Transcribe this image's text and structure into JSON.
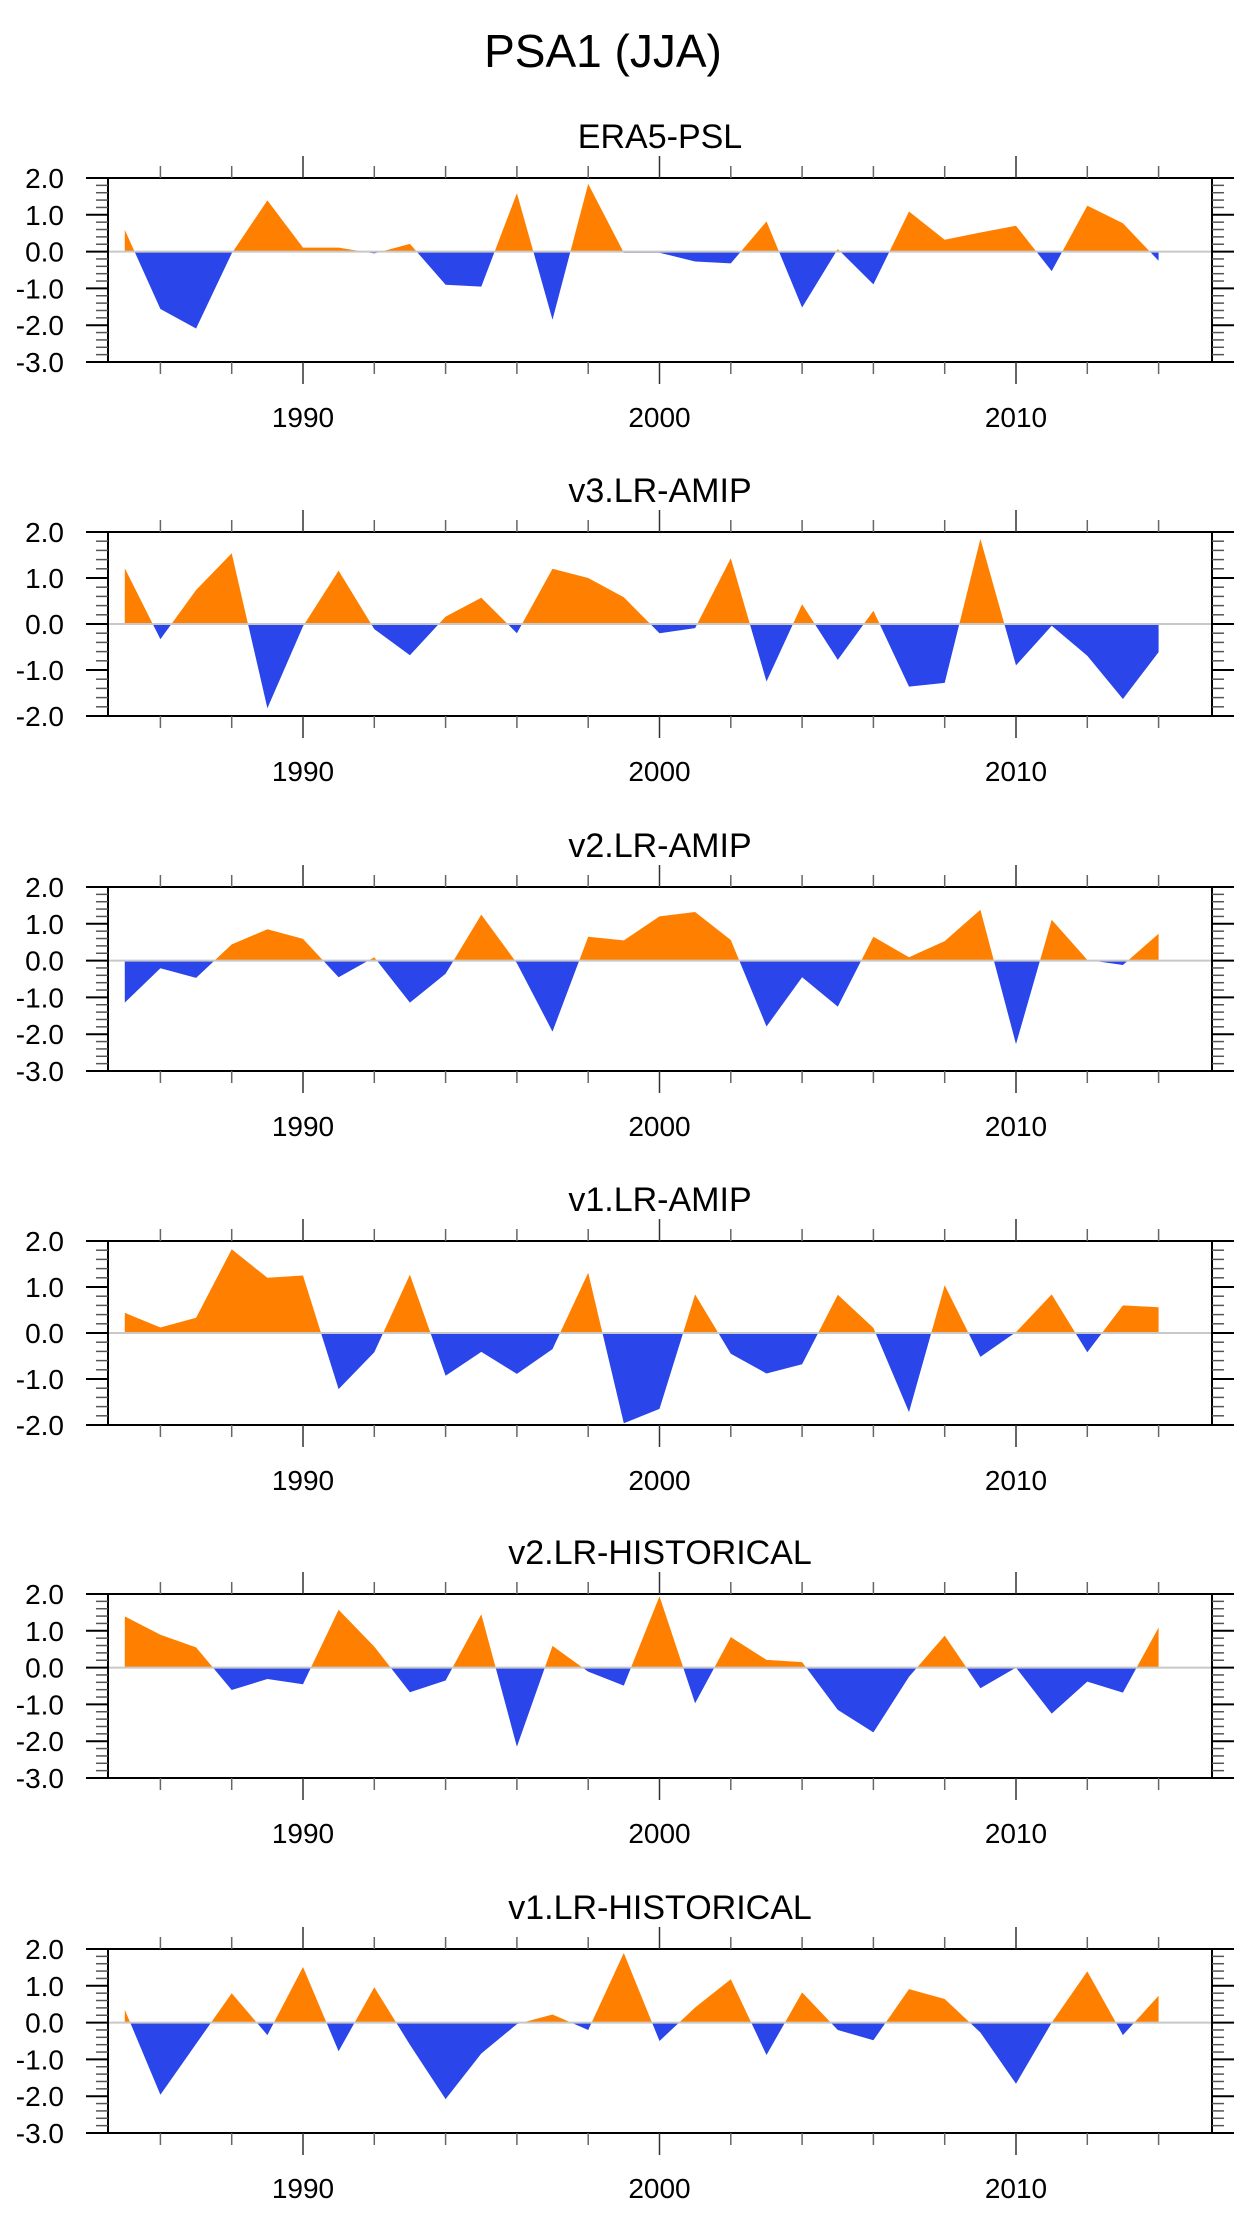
{
  "title": "PSA1 (JJA)",
  "colors": {
    "positive": "#FF8000",
    "negative": "#2A45EA",
    "zero_line": "#C8C8C8",
    "axis": "#000000"
  },
  "chart_data": [
    {
      "type": "area",
      "title": "ERA5-PSL",
      "xlabel": "",
      "ylabel": "",
      "x": [
        1985,
        1986,
        1987,
        1988,
        1989,
        1990,
        1991,
        1992,
        1993,
        1994,
        1995,
        1996,
        1997,
        1998,
        1999,
        2000,
        2001,
        2002,
        2003,
        2004,
        2005,
        2006,
        2007,
        2008,
        2009,
        2010,
        2011,
        2012,
        2013,
        2014
      ],
      "values": [
        0.59,
        -1.56,
        -2.09,
        -0.05,
        1.39,
        0.11,
        0.11,
        -0.05,
        0.21,
        -0.9,
        -0.95,
        1.59,
        -1.85,
        1.84,
        -0.03,
        -0.03,
        -0.27,
        -0.32,
        0.82,
        -1.52,
        0.07,
        -0.89,
        1.09,
        0.32,
        0.52,
        0.7,
        -0.53,
        1.25,
        0.77,
        -0.25
      ],
      "xlim": [
        1983.5,
        2015.5
      ],
      "ylim": [
        -3.0,
        2.0
      ],
      "yticks": [
        "2.0",
        "1.0",
        "0.0",
        "-1.0",
        "-2.0",
        "-3.0"
      ],
      "xticks": [
        "1990",
        "2000",
        "2010"
      ],
      "fill": "positive above zero, negative below zero"
    },
    {
      "type": "area",
      "title": "v3.LR-AMIP",
      "x": [
        1985,
        1986,
        1987,
        1988,
        1989,
        1990,
        1991,
        1992,
        1993,
        1994,
        1995,
        1996,
        1997,
        1998,
        1999,
        2000,
        2001,
        2002,
        2003,
        2004,
        2005,
        2006,
        2007,
        2008,
        2009,
        2010,
        2011,
        2012,
        2013,
        2014
      ],
      "values": [
        1.21,
        -0.33,
        0.74,
        1.54,
        -1.83,
        -0.05,
        1.16,
        -0.11,
        -0.68,
        0.16,
        0.57,
        -0.2,
        1.2,
        1.0,
        0.58,
        -0.2,
        -0.09,
        1.43,
        -1.25,
        0.43,
        -0.78,
        0.29,
        -1.36,
        -1.28,
        1.85,
        -0.9,
        -0.04,
        -0.69,
        -1.63,
        -0.61
      ],
      "xlim": [
        1983.5,
        2015.5
      ],
      "ylim": [
        -2.0,
        2.0
      ],
      "yticks": [
        "2.0",
        "1.0",
        "0.0",
        "-1.0",
        "-2.0"
      ],
      "xticks": [
        "1990",
        "2000",
        "2010"
      ]
    },
    {
      "type": "area",
      "title": "v2.LR-AMIP",
      "x": [
        1985,
        1986,
        1987,
        1988,
        1989,
        1990,
        1991,
        1992,
        1993,
        1994,
        1995,
        1996,
        1997,
        1998,
        1999,
        2000,
        2001,
        2002,
        2003,
        2004,
        2005,
        2006,
        2007,
        2008,
        2009,
        2010,
        2011,
        2012,
        2013,
        2014
      ],
      "values": [
        -1.14,
        -0.21,
        -0.47,
        0.44,
        0.85,
        0.59,
        -0.45,
        0.09,
        -1.14,
        -0.36,
        1.25,
        -0.07,
        -1.93,
        0.65,
        0.55,
        1.2,
        1.32,
        0.56,
        -1.79,
        -0.45,
        -1.25,
        0.65,
        0.09,
        0.53,
        1.38,
        -2.27,
        1.11,
        0.02,
        -0.12,
        0.73
      ],
      "xlim": [
        1983.5,
        2015.5
      ],
      "ylim": [
        -3.0,
        2.0
      ],
      "yticks": [
        "2.0",
        "1.0",
        "0.0",
        "-1.0",
        "-2.0",
        "-3.0"
      ],
      "xticks": [
        "1990",
        "2000",
        "2010"
      ]
    },
    {
      "type": "area",
      "title": "v1.LR-AMIP",
      "x": [
        1985,
        1986,
        1987,
        1988,
        1989,
        1990,
        1991,
        1992,
        1993,
        1994,
        1995,
        1996,
        1997,
        1998,
        1999,
        2000,
        2001,
        2002,
        2003,
        2004,
        2005,
        2006,
        2007,
        2008,
        2009,
        2010,
        2011,
        2012,
        2013,
        2014
      ],
      "values": [
        0.44,
        0.12,
        0.33,
        1.82,
        1.2,
        1.25,
        -1.22,
        -0.42,
        1.27,
        -0.93,
        -0.41,
        -0.89,
        -0.35,
        1.31,
        -1.96,
        -1.65,
        0.84,
        -0.45,
        -0.88,
        -0.68,
        0.83,
        0.11,
        -1.72,
        1.04,
        -0.52,
        0.02,
        0.84,
        -0.42,
        0.6,
        0.56
      ],
      "xlim": [
        1983.5,
        2015.5
      ],
      "ylim": [
        -2.0,
        2.0
      ],
      "yticks": [
        "2.0",
        "1.0",
        "0.0",
        "-1.0",
        "-2.0"
      ],
      "xticks": [
        "1990",
        "2000",
        "2010"
      ]
    },
    {
      "type": "area",
      "title": "v2.LR-HISTORICAL",
      "x": [
        1985,
        1986,
        1987,
        1988,
        1989,
        1990,
        1991,
        1992,
        1993,
        1994,
        1995,
        1996,
        1997,
        1998,
        1999,
        2000,
        2001,
        2002,
        2003,
        2004,
        2005,
        2006,
        2007,
        2008,
        2009,
        2010,
        2011,
        2012,
        2013,
        2014
      ],
      "values": [
        1.39,
        0.89,
        0.55,
        -0.61,
        -0.31,
        -0.45,
        1.57,
        0.57,
        -0.67,
        -0.35,
        1.45,
        -2.15,
        0.59,
        -0.11,
        -0.49,
        1.94,
        -0.97,
        0.83,
        0.21,
        0.15,
        -1.15,
        -1.76,
        -0.25,
        0.87,
        -0.56,
        0.0,
        -1.25,
        -0.38,
        -0.68,
        1.09
      ],
      "xlim": [
        1983.5,
        2015.5
      ],
      "ylim": [
        -3.0,
        2.0
      ],
      "yticks": [
        "2.0",
        "1.0",
        "0.0",
        "-1.0",
        "-2.0",
        "-3.0"
      ],
      "xticks": [
        "1990",
        "2000",
        "2010"
      ]
    },
    {
      "type": "area",
      "title": "v1.LR-HISTORICAL",
      "x": [
        1985,
        1986,
        1987,
        1988,
        1989,
        1990,
        1991,
        1992,
        1993,
        1994,
        1995,
        1996,
        1997,
        1998,
        1999,
        2000,
        2001,
        2002,
        2003,
        2004,
        2005,
        2006,
        2007,
        2008,
        2009,
        2010,
        2011,
        2012,
        2013,
        2014
      ],
      "values": [
        0.35,
        -1.96,
        -0.58,
        0.8,
        -0.34,
        1.51,
        -0.78,
        0.96,
        -0.6,
        -2.08,
        -0.84,
        -0.04,
        0.22,
        -0.2,
        1.89,
        -0.5,
        0.41,
        1.18,
        -0.88,
        0.82,
        -0.2,
        -0.48,
        0.91,
        0.64,
        -0.27,
        -1.66,
        0.0,
        1.39,
        -0.34,
        0.73
      ],
      "xlim": [
        1983.5,
        2015.5
      ],
      "ylim": [
        -3.0,
        2.0
      ],
      "yticks": [
        "2.0",
        "1.0",
        "0.0",
        "-1.0",
        "-2.0",
        "-3.0"
      ],
      "xticks": [
        "1990",
        "2000",
        "2010"
      ]
    }
  ]
}
